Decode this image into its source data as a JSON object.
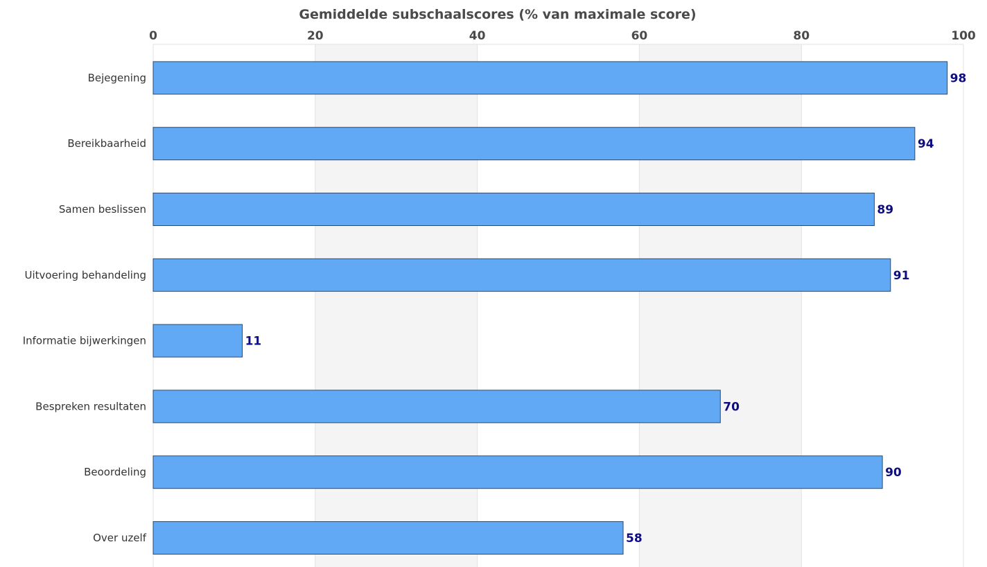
{
  "chart_data": {
    "type": "bar",
    "orientation": "horizontal",
    "title": "Gemiddelde subschaalscores (% van maximale score)",
    "categories": [
      "Bejegening",
      "Bereikbaarheid",
      "Samen beslissen",
      "Uitvoering behandeling",
      "Informatie bijwerkingen",
      "Bespreken resultaten",
      "Beoordeling",
      "Over uzelf"
    ],
    "values": [
      98,
      94,
      89,
      91,
      11,
      70,
      90,
      58
    ],
    "value_labels": [
      "98",
      "94",
      "89",
      "91",
      "11",
      "70",
      "90",
      "58"
    ],
    "xlim": [
      0,
      100
    ],
    "xticks": [
      0,
      20,
      40,
      60,
      80,
      100
    ],
    "tick_labels": [
      "0",
      "20",
      "40",
      "60",
      "80",
      "100"
    ],
    "x_axis_position": "top",
    "grid": true,
    "alternating_bands": true,
    "colors": {
      "bar": "#61a8f5",
      "bar_border": "#2d4a6b",
      "value_label": "#0d0d80",
      "band": "#f4f4f4",
      "grid": "#e2e2e2"
    }
  }
}
